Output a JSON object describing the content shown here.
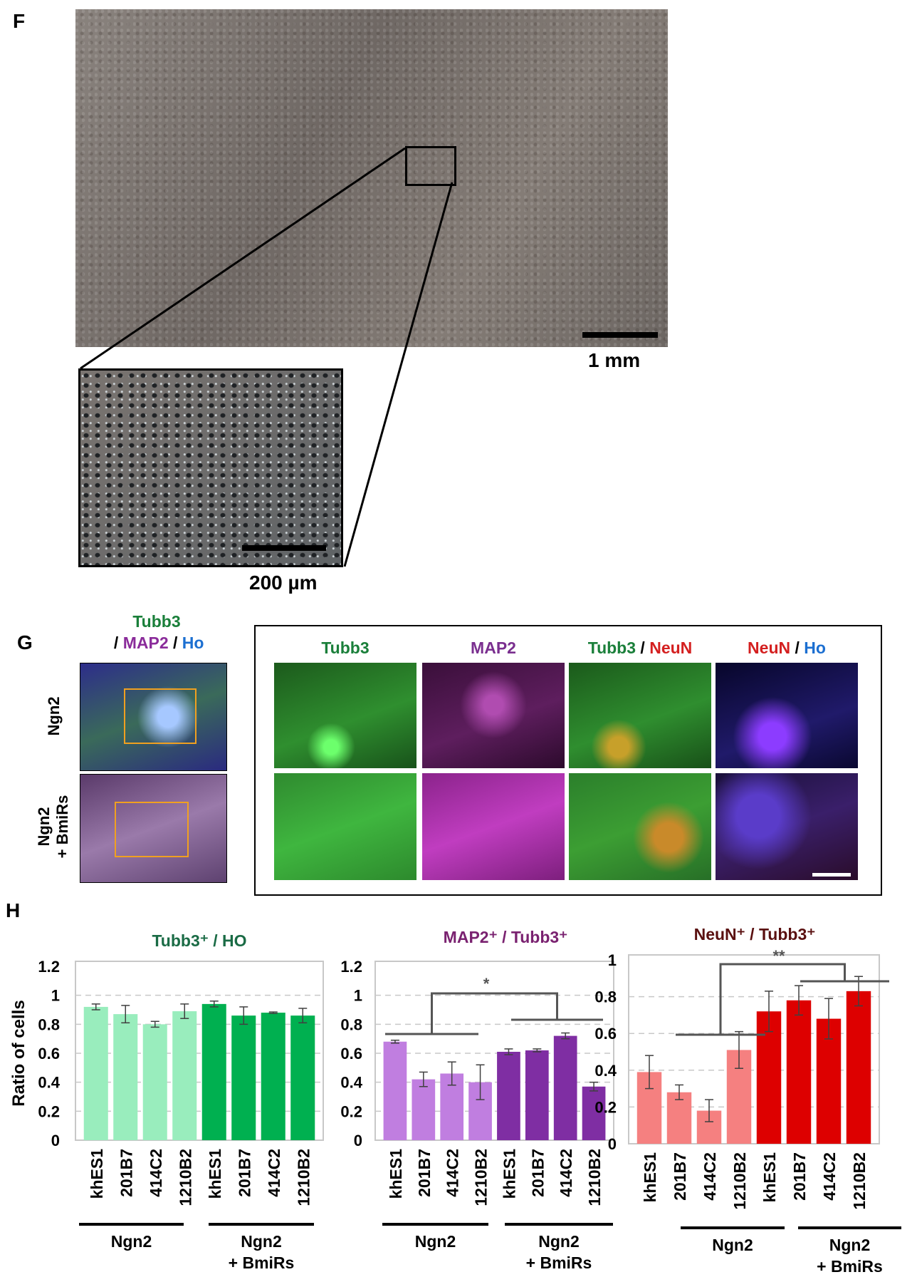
{
  "panel_f": {
    "label": "F",
    "scale_main": "1 mm",
    "scale_inset": "200 µm"
  },
  "panel_g": {
    "label": "G",
    "legend": [
      {
        "text": "Tubb3",
        "color": "#1a7f3a"
      },
      {
        "text": " / ",
        "color": "#000000"
      },
      {
        "text": "MAP2",
        "color": "#8a2b9a"
      },
      {
        "text": " / ",
        "color": "#000000"
      },
      {
        "text": "Ho",
        "color": "#1c6fd1"
      }
    ],
    "row_labels": [
      "Ngn2",
      "Ngn2\n+ BmiRs"
    ],
    "column_headers": [
      [
        {
          "text": "Tubb3",
          "color": "#1a7f3a"
        }
      ],
      [
        {
          "text": "MAP2",
          "color": "#7a2f8f"
        }
      ],
      [
        {
          "text": "Tubb3",
          "color": "#1a7f3a"
        },
        {
          "text": " / ",
          "color": "#000000"
        },
        {
          "text": "NeuN",
          "color": "#d42020"
        }
      ],
      [
        {
          "text": "NeuN",
          "color": "#d42020"
        },
        {
          "text": " / ",
          "color": "#000000"
        },
        {
          "text": "Ho",
          "color": "#1c6fd1"
        }
      ]
    ]
  },
  "panel_h": {
    "label": "H"
  },
  "chart_data": [
    {
      "type": "bar",
      "title": "Tubb3⁺ / HO",
      "title_color": "#1a6b45",
      "ylabel": "Ratio of cells",
      "ylim": [
        0,
        1.2
      ],
      "yticks": [
        "0",
        "0.2",
        "0.4",
        "0.6",
        "0.8",
        "1",
        "1.2"
      ],
      "categories": [
        "khES1",
        "201B7",
        "414C2",
        "1210B2",
        "khES1",
        "201B7",
        "414C2",
        "1210B2"
      ],
      "values": [
        0.92,
        0.87,
        0.8,
        0.89,
        0.94,
        0.86,
        0.88,
        0.86
      ],
      "errors": [
        0.02,
        0.06,
        0.02,
        0.05,
        0.02,
        0.06,
        0.005,
        0.05
      ],
      "colors": [
        "#99edbd",
        "#99edbd",
        "#99edbd",
        "#99edbd",
        "#00b050",
        "#00b050",
        "#00b050",
        "#00b050"
      ],
      "groups": [
        "Ngn2",
        "Ngn2\n+ BmiRs"
      ],
      "significance": ""
    },
    {
      "type": "bar",
      "title": "MAP2⁺ / Tubb3⁺",
      "title_color": "#7a2270",
      "ylim": [
        0,
        1.2
      ],
      "yticks": [
        "0",
        "0.2",
        "0.4",
        "0.6",
        "0.8",
        "1",
        "1.2"
      ],
      "categories": [
        "khES1",
        "201B7",
        "414C2",
        "1210B2",
        "khES1",
        "201B7",
        "414C2",
        "1210B2"
      ],
      "values": [
        0.68,
        0.42,
        0.46,
        0.4,
        0.61,
        0.62,
        0.72,
        0.37
      ],
      "errors": [
        0.01,
        0.05,
        0.08,
        0.12,
        0.02,
        0.01,
        0.02,
        0.03
      ],
      "colors": [
        "#c07ee0",
        "#c07ee0",
        "#c07ee0",
        "#c07ee0",
        "#7f2ea3",
        "#7f2ea3",
        "#7f2ea3",
        "#7f2ea3"
      ],
      "groups": [
        "Ngn2",
        "Ngn2\n+ BmiRs"
      ],
      "significance": "*"
    },
    {
      "type": "bar",
      "title": "NeuN⁺ / Tubb3⁺",
      "title_color": "#5a1010",
      "ylim": [
        0,
        1
      ],
      "yticks": [
        "0",
        "0.2",
        "0.4",
        "0.6",
        "0.8",
        "1"
      ],
      "categories": [
        "khES1",
        "201B7",
        "414C2",
        "1210B2",
        "khES1",
        "201B7",
        "414C2",
        "1210B2"
      ],
      "values": [
        0.39,
        0.28,
        0.18,
        0.51,
        0.72,
        0.78,
        0.68,
        0.83
      ],
      "errors": [
        0.09,
        0.04,
        0.06,
        0.1,
        0.11,
        0.08,
        0.11,
        0.08
      ],
      "colors": [
        "#f58080",
        "#f58080",
        "#f58080",
        "#f58080",
        "#dd0000",
        "#dd0000",
        "#dd0000",
        "#dd0000"
      ],
      "groups": [
        "Ngn2",
        "Ngn2\n+ BmiRs"
      ],
      "significance": "**"
    }
  ]
}
